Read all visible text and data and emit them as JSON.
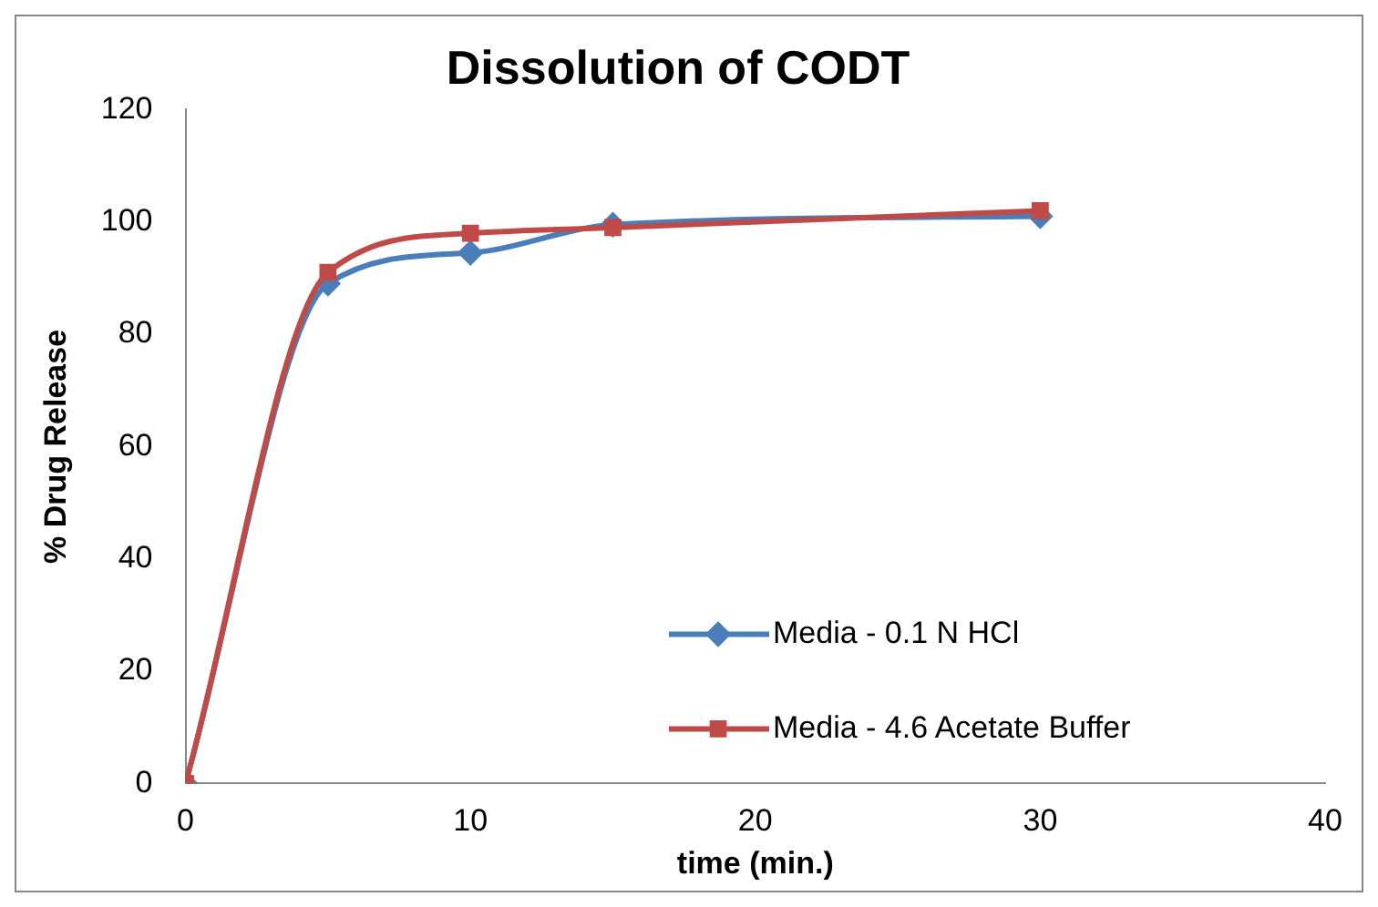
{
  "chart_data": {
    "type": "line",
    "title": "Dissolution of CODT",
    "xlabel": "time (min.)",
    "ylabel": "% Drug Release",
    "x": [
      0,
      5,
      10,
      15,
      30
    ],
    "series": [
      {
        "name": "Media - 0.1 N HCl",
        "color": "#4a7ebb",
        "marker": "diamond",
        "values": [
          0,
          89,
          94.5,
          99.5,
          101
        ]
      },
      {
        "name": "Media - 4.6 Acetate Buffer",
        "color": "#be4b48",
        "marker": "square",
        "values": [
          0,
          91,
          98,
          99,
          102
        ]
      }
    ],
    "xlim": [
      0,
      40
    ],
    "xticks": [
      0,
      10,
      20,
      30,
      40
    ],
    "ylim": [
      0,
      120
    ],
    "yticks": [
      0,
      20,
      40,
      60,
      80,
      100,
      120
    ],
    "grid": false,
    "legend": "bottom right"
  }
}
